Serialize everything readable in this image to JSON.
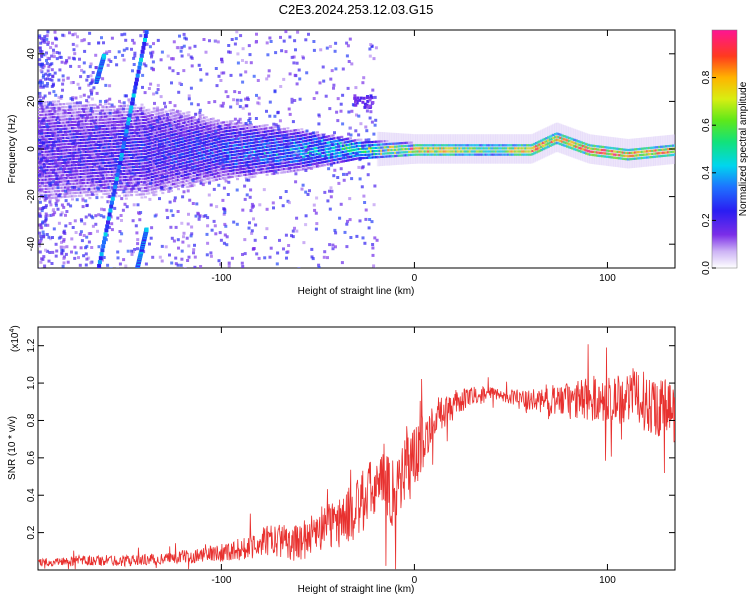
{
  "figure_title": "C2E3.2024.253.12.03.G15",
  "chart_data": [
    {
      "type": "heatmap",
      "xlabel": "Height of straight line (km)",
      "ylabel": "Frequency (Hz)",
      "xlim": [
        -195,
        135
      ],
      "ylim": [
        -50,
        50
      ],
      "xticks": [
        -100,
        0,
        100
      ],
      "yticks": [
        -40,
        -20,
        0,
        20,
        40
      ],
      "colorbar": {
        "label": "Normalized spectral amplitude",
        "range": [
          0,
          1
        ],
        "ticks": [
          0.0,
          0.2,
          0.4,
          0.6,
          0.8
        ]
      },
      "tracks": [
        {
          "x0": -164,
          "y0": -50,
          "x1": -139,
          "y1": 50
        },
        {
          "x0": -144,
          "y0": -50,
          "x1": -139,
          "y1": -33
        },
        {
          "x0": -165,
          "y0": 29,
          "x1": -161,
          "y1": 40
        }
      ],
      "ridge": [
        {
          "x": -195,
          "y": 0,
          "amp": 0.2,
          "spread": 16
        },
        {
          "x": -140,
          "y": 0,
          "amp": 0.25,
          "spread": 14
        },
        {
          "x": -100,
          "y": 0,
          "amp": 0.3,
          "spread": 9
        },
        {
          "x": -60,
          "y": 0,
          "amp": 0.4,
          "spread": 6
        },
        {
          "x": -30,
          "y": 0,
          "amp": 0.55,
          "spread": 3
        },
        {
          "x": 0,
          "y": 0,
          "amp": 0.85,
          "spread": 2
        },
        {
          "x": 40,
          "y": 0,
          "amp": 0.6,
          "spread": 2
        },
        {
          "x": 60,
          "y": 0,
          "amp": 0.9,
          "spread": 2
        },
        {
          "x": 73,
          "y": 5,
          "amp": 0.8,
          "spread": 2
        },
        {
          "x": 90,
          "y": 0,
          "amp": 0.9,
          "spread": 2
        },
        {
          "x": 110,
          "y": -2,
          "amp": 0.85,
          "spread": 2
        },
        {
          "x": 135,
          "y": 0,
          "amp": 0.85,
          "spread": 2
        }
      ],
      "blob": {
        "x0": -32,
        "x1": -22,
        "y0": 18,
        "y1": 23
      }
    },
    {
      "type": "line",
      "xlabel": "Height of straight line (km)",
      "ylabel": "SNR (10 * v/v)",
      "y_multiplier": "(x10",
      "y_multiplier_exponent": "4",
      "y_multiplier_close": ")",
      "xlim": [
        -195,
        135
      ],
      "ylim": [
        0,
        1.3
      ],
      "xticks": [
        -100,
        0,
        100
      ],
      "yticks": [
        0.2,
        0.4,
        0.6,
        0.8,
        1.0,
        1.2
      ],
      "color": "#e8312f",
      "series": [
        {
          "x": [
            -195,
            -170,
            -150,
            -130,
            -110,
            -90,
            -80,
            -70,
            -60,
            -50,
            -40,
            -30,
            -20,
            -10,
            -5,
            0,
            5,
            10,
            20,
            30,
            40,
            50,
            60,
            70,
            80,
            90,
            100,
            110,
            120,
            135
          ],
          "y": [
            0.04,
            0.05,
            0.05,
            0.06,
            0.08,
            0.11,
            0.15,
            0.16,
            0.14,
            0.22,
            0.25,
            0.32,
            0.45,
            0.42,
            0.55,
            0.6,
            0.7,
            0.8,
            0.88,
            0.93,
            0.94,
            0.93,
            0.9,
            0.92,
            0.9,
            0.92,
            0.9,
            0.94,
            0.9,
            0.85
          ],
          "noise": [
            0.02,
            0.03,
            0.03,
            0.03,
            0.04,
            0.06,
            0.08,
            0.09,
            0.1,
            0.12,
            0.14,
            0.16,
            0.18,
            0.2,
            0.2,
            0.18,
            0.14,
            0.1,
            0.08,
            0.05,
            0.04,
            0.04,
            0.06,
            0.08,
            0.1,
            0.12,
            0.14,
            0.15,
            0.16,
            0.18
          ]
        }
      ]
    }
  ]
}
